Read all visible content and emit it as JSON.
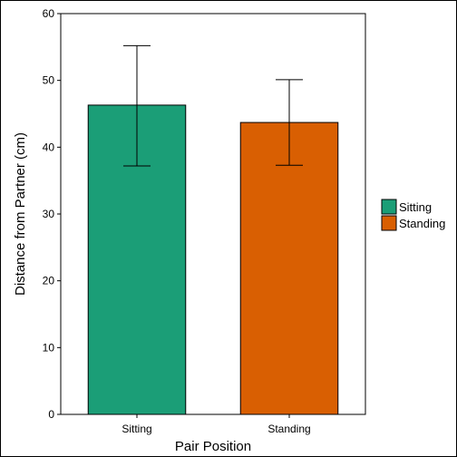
{
  "chart_data": {
    "type": "bar",
    "categories": [
      "Sitting",
      "Standing"
    ],
    "values": [
      46.3,
      43.7
    ],
    "error_low": [
      37.2,
      37.3
    ],
    "error_high": [
      55.2,
      50.1
    ],
    "colors": [
      "#1b9e77",
      "#d95f02"
    ],
    "xlabel": "Pair Position",
    "ylabel": "Distance from Partner (cm)",
    "ylim": [
      0,
      60
    ],
    "yticks": [
      0,
      10,
      20,
      30,
      40,
      50,
      60
    ],
    "grid": false,
    "legend": {
      "position": "right",
      "entries": [
        "Sitting",
        "Standing"
      ]
    }
  }
}
